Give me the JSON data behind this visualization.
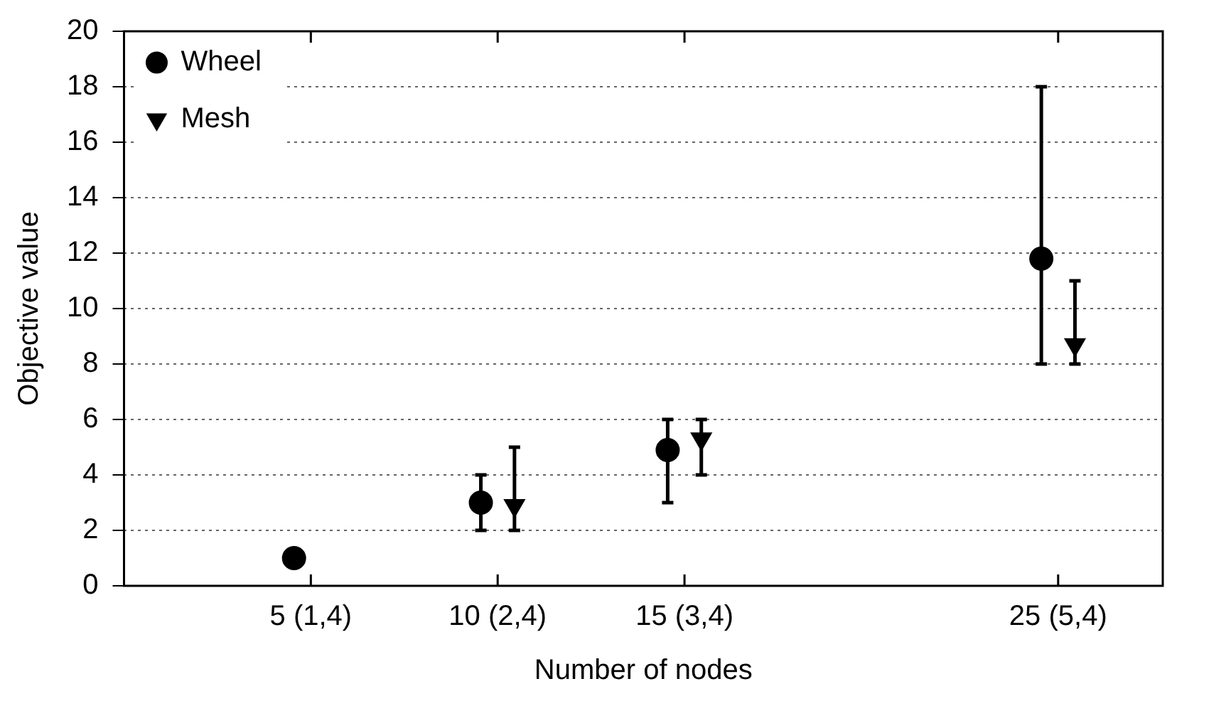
{
  "chart_data": {
    "type": "scatter",
    "xlabel": "Number of nodes",
    "ylabel": "Objective value",
    "categories": [
      "5 (1,4)",
      "10 (2,4)",
      "15 (3,4)",
      null,
      "25 (5,4)"
    ],
    "ylim": [
      0,
      20
    ],
    "yticks": [
      0,
      2,
      4,
      6,
      8,
      10,
      12,
      14,
      16,
      18,
      20
    ],
    "grid": "y",
    "legend": "top left",
    "series": [
      {
        "name": "Wheel",
        "color": "#000000",
        "marker": "circle",
        "values": [
          1.0,
          3.0,
          4.9,
          null,
          11.8
        ],
        "errors": [
          null,
          [
            2,
            4
          ],
          [
            3,
            6
          ],
          null,
          [
            8,
            18
          ]
        ]
      },
      {
        "name": "Mesh",
        "color": "#000000",
        "marker": "triangle",
        "values": [
          null,
          2.9,
          5.3,
          null,
          8.7
        ],
        "errors": [
          null,
          [
            2,
            5
          ],
          [
            4,
            6
          ],
          null,
          [
            8,
            11
          ]
        ]
      }
    ]
  }
}
